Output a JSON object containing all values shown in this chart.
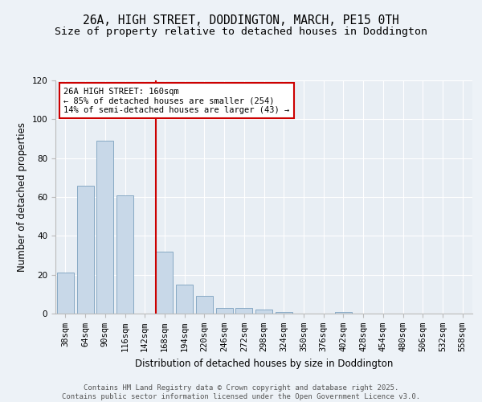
{
  "title_line1": "26A, HIGH STREET, DODDINGTON, MARCH, PE15 0TH",
  "title_line2": "Size of property relative to detached houses in Doddington",
  "xlabel": "Distribution of detached houses by size in Doddington",
  "ylabel": "Number of detached properties",
  "bar_values": [
    21,
    66,
    89,
    61,
    0,
    32,
    15,
    9,
    3,
    3,
    2,
    1,
    0,
    0,
    1,
    0,
    0,
    0,
    0,
    0,
    0
  ],
  "categories": [
    "38sqm",
    "64sqm",
    "90sqm",
    "116sqm",
    "142sqm",
    "168sqm",
    "194sqm",
    "220sqm",
    "246sqm",
    "272sqm",
    "298sqm",
    "324sqm",
    "350sqm",
    "376sqm",
    "402sqm",
    "428sqm",
    "454sqm",
    "480sqm",
    "506sqm",
    "532sqm",
    "558sqm"
  ],
  "bar_color": "#c8d8e8",
  "bar_edge_color": "#7aa0be",
  "bg_color": "#e8eef4",
  "grid_color": "#ffffff",
  "vline_color": "#cc0000",
  "vline_index": 5,
  "annotation_text": "26A HIGH STREET: 160sqm\n← 85% of detached houses are smaller (254)\n14% of semi-detached houses are larger (43) →",
  "annotation_box_color": "#ffffff",
  "annotation_box_edge": "#cc0000",
  "ylim": [
    0,
    120
  ],
  "yticks": [
    0,
    20,
    40,
    60,
    80,
    100,
    120
  ],
  "footer_line1": "Contains HM Land Registry data © Crown copyright and database right 2025.",
  "footer_line2": "Contains public sector information licensed under the Open Government Licence v3.0.",
  "title_fontsize": 10.5,
  "subtitle_fontsize": 9.5,
  "axis_label_fontsize": 8.5,
  "tick_fontsize": 7.5,
  "annotation_fontsize": 7.5,
  "footer_fontsize": 6.5,
  "fig_bg_color": "#edf2f7"
}
